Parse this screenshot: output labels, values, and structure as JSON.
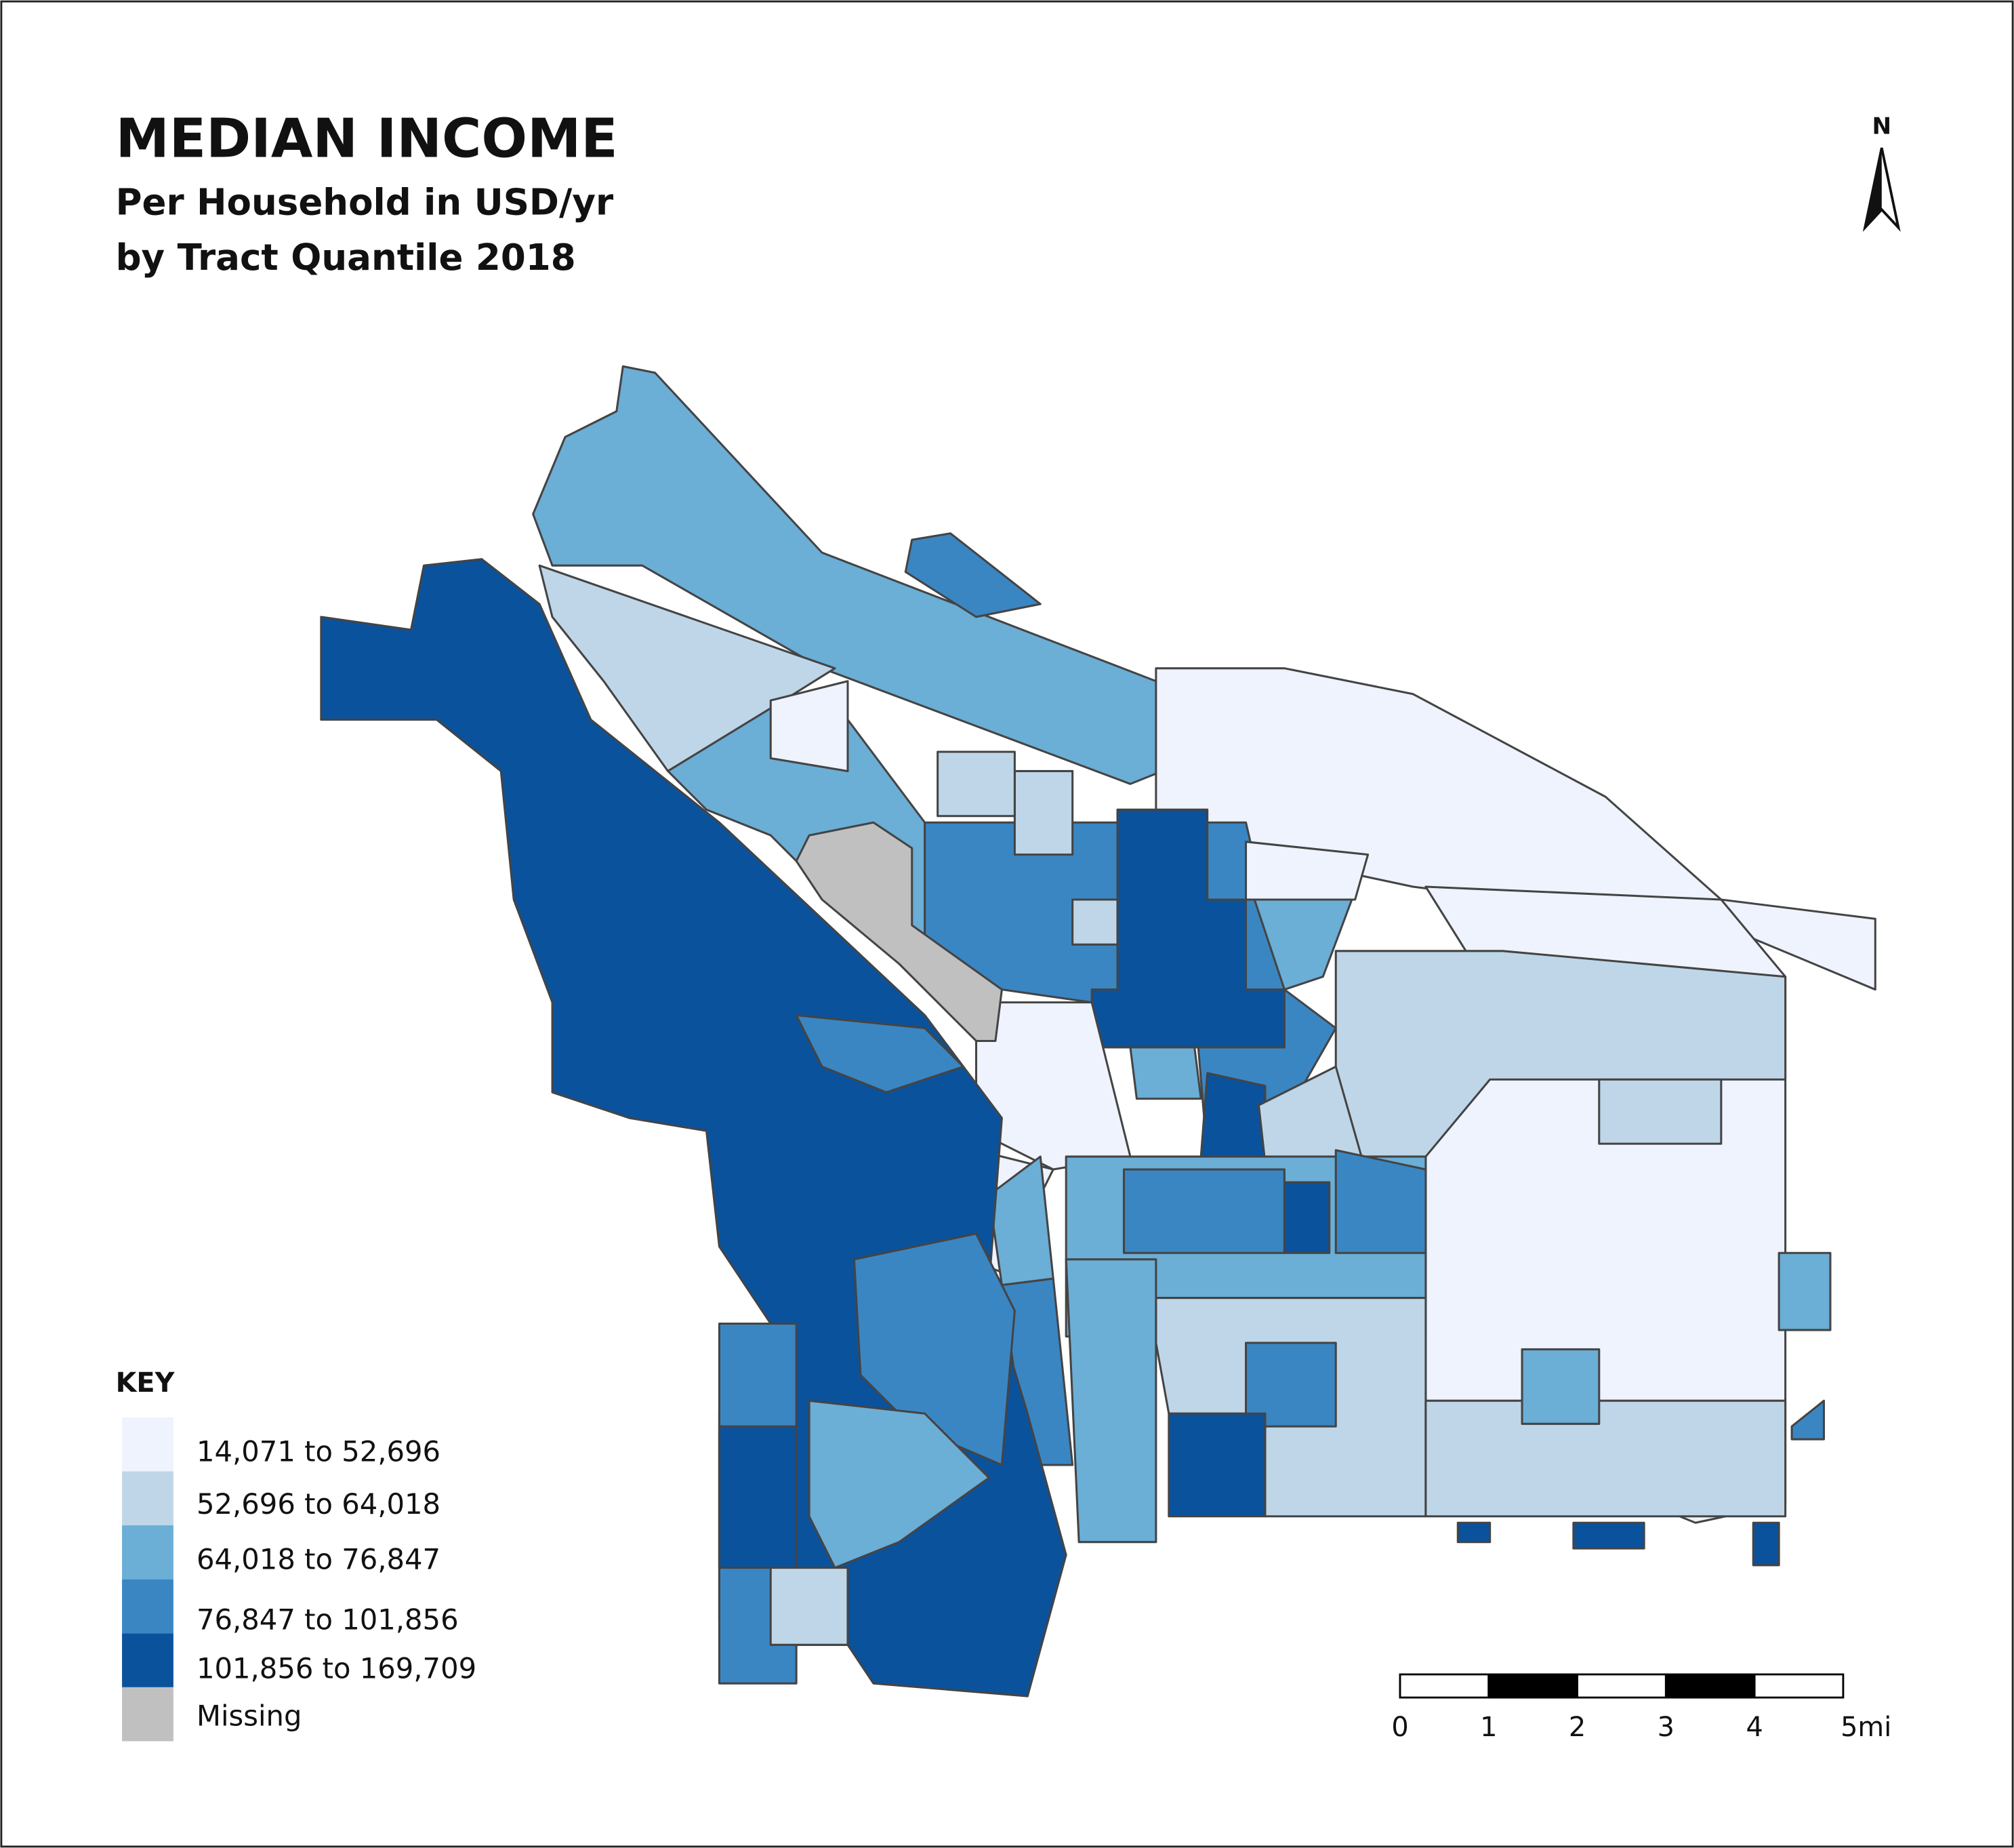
{
  "title": "MEDIAN INCOME",
  "subtitle": [
    "Per Household in USD/yr",
    "by Tract Quantile 2018"
  ],
  "north_label": "N",
  "legend": {
    "title": "KEY",
    "items": [
      {
        "label": "14,071 to 52,696",
        "color": "#eef3fd"
      },
      {
        "label": "52,696 to 64,018",
        "color": "#bed6e8"
      },
      {
        "label": "64,018 to 76,847",
        "color": "#6baed6"
      },
      {
        "label": "76,847 to 101,856",
        "color": "#3a86c3"
      },
      {
        "label": "101,856 to 169,709",
        "color": "#0b529c"
      },
      {
        "label": "Missing",
        "color": "#c0c0c0"
      }
    ]
  },
  "scale_bar": {
    "labels": [
      "0",
      "1",
      "2",
      "3",
      "4",
      "5mi"
    ]
  }
}
